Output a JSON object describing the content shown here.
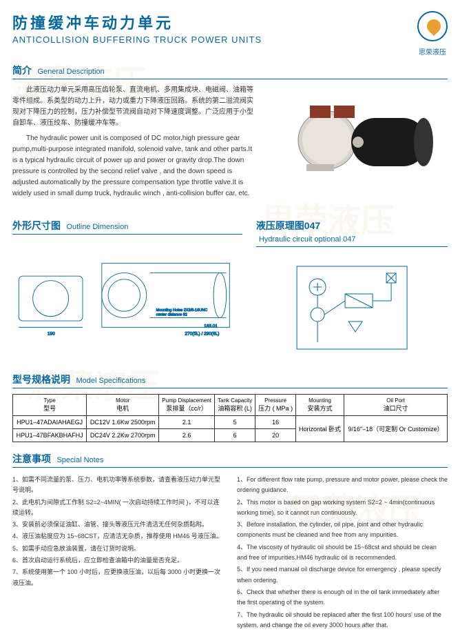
{
  "header": {
    "title_cn": "防撞缓冲车动力单元",
    "title_en": "ANTICOLLISION BUFFERING TRUCK POWER UNITS",
    "logo_text": "思荣液压"
  },
  "sections": {
    "intro": {
      "cn": "简介",
      "en": "General Description"
    },
    "outline": {
      "cn": "外形尺寸图",
      "en": "Outline Dimension"
    },
    "circuit": {
      "cn": "液压原理图047",
      "en": "Hydraulic circuit optional 047"
    },
    "specs": {
      "cn": "型号规格说明",
      "en": "Model Specifications"
    },
    "notes": {
      "cn": "注意事项",
      "en": "Special Notes"
    }
  },
  "description": {
    "cn": "此液压动力单元采用高压齿轮泵、直流电机、多用集成块、电磁阀、油箱等零件组成。系类型的动力上升，动力或重力下降液压回路。系统的第二溢流阀实现对下降压力的控制，压力补偿型节流阀自动对下降速度调整。广泛应用于小型自卸车、液压绞车、防撞缓冲车等。",
    "en": "The hydraulic power unit is composed of DC motor,high pressure gear pump,multi-purpose integrated manifold, solenoid valve, tank and other parts.It is a typical hydraulic circuit of power up and power or gravity drop.The down pressure is controlled by the second relief valve , and the down speed is adjusted automatically by the pressure compensation type throttle valve.It is widely used in small dump truck, hydraulic winch , anti-collision buffer car, etc."
  },
  "spec_table": {
    "headers": [
      {
        "en": "Type",
        "cn": "型号"
      },
      {
        "en": "Motor",
        "cn": "电机"
      },
      {
        "en": "Pump Displacement",
        "cn": "泵排量（cc/r）"
      },
      {
        "en": "Tank Capacity",
        "cn": "油箱容积 (L)"
      },
      {
        "en": "Pressure",
        "cn": "压力 ( MPa )"
      },
      {
        "en": "Mounting",
        "cn": "安装方式"
      },
      {
        "en": "Oil Port",
        "cn": "油口尺寸"
      }
    ],
    "rows": [
      {
        "type": "HPU1–47ADAIAHAEGJ",
        "motor": "DC12V 1.6Kw 2500rpm",
        "pump": "2.1",
        "tank": "5",
        "pressure": "16"
      },
      {
        "type": "HPU1–47BFAKBHAFHJ",
        "motor": "DC24V 2.2Kw 2700rpm",
        "pump": "2.6",
        "tank": "6",
        "pressure": "20"
      }
    ],
    "mounting": "Horizontal 卧式",
    "oilport": "9/16\"–18（可定制 Or Customize）"
  },
  "notes_cn": [
    "1、如需不同流量的泵、压力、电机功率等系统参数，请查看液压动力单元型号说明。",
    "2、此电机为间隙式工作制 S2=2~4MIN( 一次启动持续工作时间 )，不可以连续运转。",
    "3、安装前必须保证油缸、油管、接头等液压元件清洁无任何杂质黏附。",
    "4、液压油粘度应为 15~68CST，应清洁无杂质，推荐使用 HM46 号液压油。",
    "5、如需手动应急放油装置，请在订货时说明。",
    "6、首次启动运行系统后，应立即检查油箱中的油量是否充足。",
    "7、系统使用第一个 100 小时后，应更换液压油，以后每 3000 小时更换一次液压油。"
  ],
  "notes_en": [
    "1、For different flow rate pump, pressure and motor power, please check the ordering guidance.",
    "2、This motor is based on gap working system S2=2 ~ 4min(continuous working time), so it cannot run continuously.",
    "3、Before installation, the cylinder, oil pipe, joint and other hydraulic components must be cleaned and free from any impurities.",
    "4、The viscosity of hydraulic oil should be 15~68cst and should be clean and free of impurities.HM46 hydraulic oil is recommended.",
    "5、If you need manual oil discharge device for emergency , please specify when ordering.",
    "6、Check that whether there is enough oil in the oil tank immediately after the first operating of the system.",
    "7、The hydraulic oil should be replaced after the first 100 hours' use of the system, and change the oil every 3000 hours after that."
  ],
  "colors": {
    "primary": "#06689e",
    "accent": "#e8a030"
  }
}
